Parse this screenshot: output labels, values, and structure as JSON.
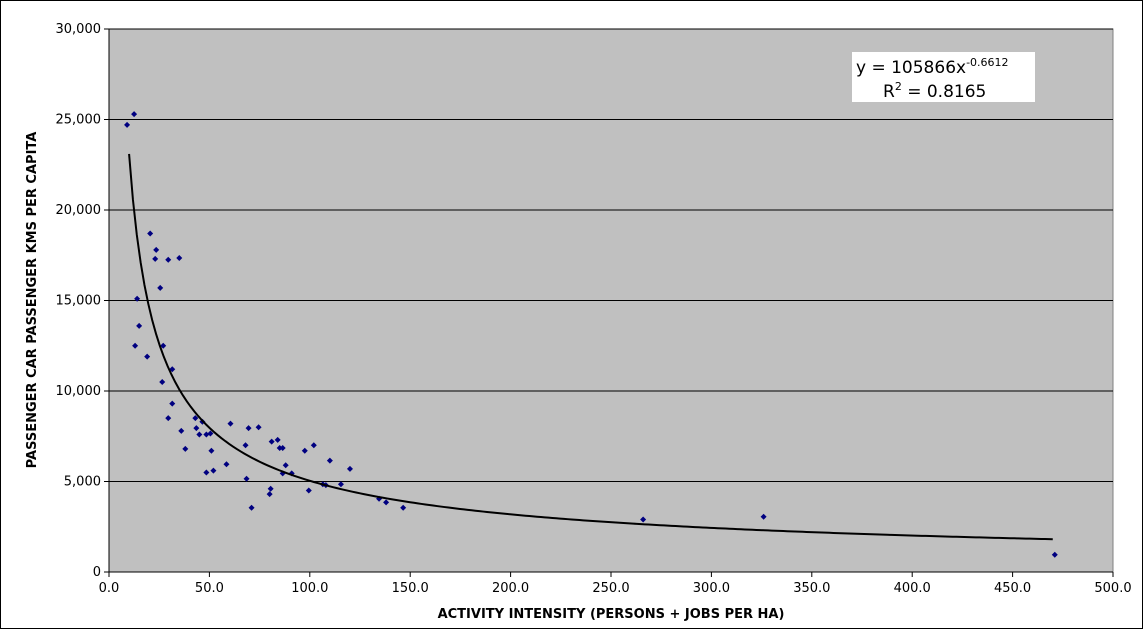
{
  "chart_data": {
    "type": "scatter",
    "title": "",
    "xlabel": "ACTIVITY INTENSITY (PERSONS + JOBS PER HA)",
    "ylabel": "PASSENGER CAR PASSENGER KMS PER CAPITA",
    "xlim": [
      0,
      500
    ],
    "ylim": [
      0,
      30000
    ],
    "x_ticks": [
      "0.0",
      "50.0",
      "100.0",
      "150.0",
      "200.0",
      "250.0",
      "300.0",
      "350.0",
      "400.0",
      "450.0",
      "500.0"
    ],
    "y_ticks": [
      "0",
      "5,000",
      "10,000",
      "15,000",
      "20,000",
      "25,000",
      "30,000"
    ],
    "grid": "horizontal",
    "plot_background": "#c0c0c0",
    "marker_color": "#000080",
    "trendline_color": "#000000",
    "series": [
      {
        "points": [
          [
            9,
            24700
          ],
          [
            12.5,
            25300
          ],
          [
            13,
            12500
          ],
          [
            14,
            15100
          ],
          [
            15,
            13600
          ],
          [
            19,
            11900
          ],
          [
            20.5,
            18700
          ],
          [
            23,
            17300
          ],
          [
            23.5,
            17800
          ],
          [
            25.5,
            15700
          ],
          [
            26.5,
            10500
          ],
          [
            27,
            12500
          ],
          [
            29.5,
            8500
          ],
          [
            29.5,
            17250
          ],
          [
            31.5,
            11200
          ],
          [
            31.5,
            9300
          ],
          [
            35,
            17350
          ],
          [
            36,
            7800
          ],
          [
            38,
            6800
          ],
          [
            43,
            8500
          ],
          [
            43.5,
            7950
          ],
          [
            45,
            7600
          ],
          [
            46.5,
            8300
          ],
          [
            48.5,
            5500
          ],
          [
            48.5,
            7600
          ],
          [
            50.5,
            7650
          ],
          [
            51,
            6700
          ],
          [
            52,
            5600
          ],
          [
            58.5,
            5950
          ],
          [
            60.5,
            8200
          ],
          [
            68,
            7000
          ],
          [
            68.5,
            5150
          ],
          [
            69.5,
            7950
          ],
          [
            71,
            3550
          ],
          [
            74.5,
            8000
          ],
          [
            80,
            4300
          ],
          [
            80.5,
            4600
          ],
          [
            81,
            7200
          ],
          [
            84,
            7300
          ],
          [
            85,
            6850
          ],
          [
            86.5,
            6850
          ],
          [
            86.5,
            5450
          ],
          [
            88,
            5900
          ],
          [
            91,
            5450
          ],
          [
            97.5,
            6700
          ],
          [
            99.5,
            4500
          ],
          [
            102,
            7000
          ],
          [
            106.5,
            4850
          ],
          [
            108,
            4800
          ],
          [
            110,
            6150
          ],
          [
            115.5,
            4850
          ],
          [
            120,
            5700
          ],
          [
            134.5,
            4050
          ],
          [
            138,
            3850
          ],
          [
            146.5,
            3550
          ],
          [
            266,
            2900
          ],
          [
            326,
            3050
          ],
          [
            471,
            950
          ]
        ]
      }
    ],
    "trendline": {
      "type": "power",
      "a": 105866,
      "b": -0.6612,
      "x_range": [
        10,
        470
      ]
    },
    "equation": {
      "prefix": "y = 105866x",
      "exponent": "-0.6612",
      "r2_prefix": "R",
      "r2_exp": "2",
      "r2_suffix": " = 0.8165"
    }
  }
}
